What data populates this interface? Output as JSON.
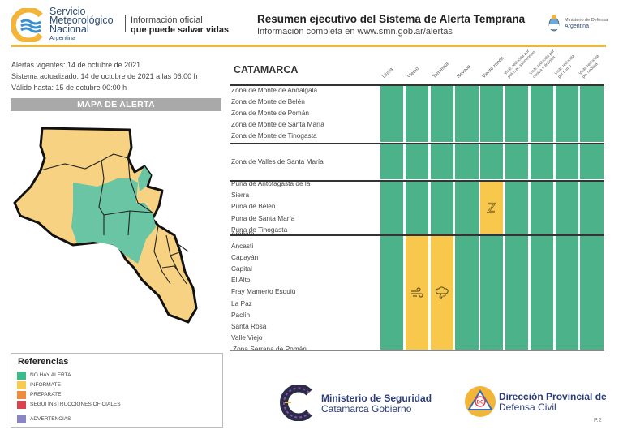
{
  "header": {
    "org_name_line1": "Servicio",
    "org_name_line2": "Meteorológico",
    "org_name_line3": "Nacional",
    "org_country": "Argentina",
    "tagline_line1": "Información oficial",
    "tagline_line2": "que puede salvar vidas",
    "title": "Resumen ejecutivo del Sistema de Alerta Temprana",
    "subtitle": "Información completa en www.smn.gob.ar/alertas",
    "ministry_line1": "Ministerio de Defensa",
    "ministry_line2": "Argentina"
  },
  "info": {
    "vigentes": "Alertas vigentes: 14 de octubre de 2021",
    "actualizado": "Sistema actualizado: 14 de octubre de 2021 a las 06:00 h",
    "valido": "Válido hasta: 15 de octubre 00:00 h"
  },
  "map": {
    "banner": "MAPA DE ALERTA"
  },
  "legend": {
    "title": "Referencias",
    "items": [
      {
        "label": "NO HAY ALERTA",
        "color": "#3dbb8c"
      },
      {
        "label": "INFORMATE",
        "color": "#f7cb50"
      },
      {
        "label": "PREPARATE",
        "color": "#ef8c3f"
      },
      {
        "label": "SEGUI INSTRUCCIONES OFICIALES",
        "color": "#d9434f"
      },
      {
        "label": "ADVERTENCIAS",
        "color": "#8a86c4"
      }
    ]
  },
  "table": {
    "region": "CATAMARCA",
    "columns": [
      "Lluvia",
      "Viento",
      "Tormenta",
      "Nevada",
      "Viento zonda",
      "Visib. reducida por\npolvo en suspensión",
      "Visib. reducida por\nceniza volcánica",
      "Visib. reducida\npor humo",
      "Visib. reducida\npor neblina"
    ],
    "groups": [
      {
        "zones": [
          "Zona de Monte de Andalgalá",
          "Zona de Monte de Belén",
          "Zona de Monte de Pomán",
          "Zona de Monte de Santa María",
          "Zona de Monte de Tinogasta"
        ],
        "status": [
          "none",
          "none",
          "none",
          "none",
          "none",
          "none",
          "none",
          "none",
          "none"
        ]
      },
      {
        "zones": [
          "Zona de Valles de Santa María"
        ],
        "status": [
          "none",
          "none",
          "none",
          "none",
          "none",
          "none",
          "none",
          "none",
          "none"
        ]
      },
      {
        "zones": [
          "Puna de Antofagasta de la",
          "Sierra",
          "Puna de Belén",
          "Puna de Santa María",
          "Puna de Tinogasta"
        ],
        "status": [
          "none",
          "none",
          "none",
          "none",
          "informate",
          "none",
          "none",
          "none",
          "none"
        ],
        "icons": {
          "4": "zonda-icon"
        }
      },
      {
        "zones": [
          "Ambato",
          "Ancasti",
          "Capayán",
          "Capital",
          "El Alto",
          "Fray Mamerto Esquiú",
          "La Paz",
          "Paclín",
          "Santa Rosa",
          "Valle Viejo",
          "Zona Serrana de Pomán"
        ],
        "status": [
          "none",
          "informate",
          "informate",
          "none",
          "none",
          "none",
          "none",
          "none",
          "none"
        ],
        "icons": {
          "1": "wind-icon",
          "2": "storm-icon"
        }
      }
    ]
  },
  "footer": {
    "org1_line1": "Ministerio de Seguridad",
    "org1_line2": "Catamarca Gobierno",
    "org2_line1": "Dirección Provincial de",
    "org2_line2": "Defensa Civil",
    "org2_badge": "DC",
    "page": "P.2"
  }
}
